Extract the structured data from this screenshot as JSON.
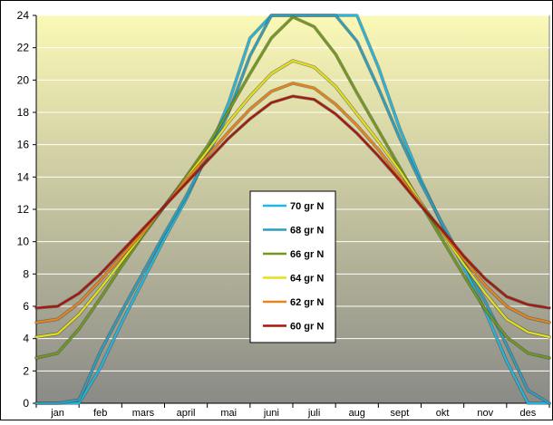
{
  "chart_data": {
    "type": "line",
    "x_unit": "month",
    "categories": [
      "jan",
      "feb",
      "mars",
      "april",
      "mai",
      "juni",
      "juli",
      "aug",
      "sept",
      "okt",
      "nov",
      "des"
    ],
    "ylim": [
      0,
      24
    ],
    "yticks": [
      0,
      2,
      4,
      6,
      8,
      10,
      12,
      14,
      16,
      18,
      20,
      22,
      24
    ],
    "grid": "horizontal",
    "legend_position": "center",
    "background_gradient": [
      "#fbf9b6",
      "#8a8a87"
    ],
    "x": [
      0,
      0.5,
      1,
      1.5,
      2,
      2.5,
      3,
      3.5,
      4,
      4.5,
      5,
      5.5,
      6,
      6.5,
      7,
      7.5,
      8,
      8.5,
      9,
      9.5,
      10,
      10.5,
      11,
      11.5,
      12
    ],
    "series": [
      {
        "name": "70 gr N",
        "color": "#1fb8e0",
        "values": [
          0,
          0,
          0,
          2.2,
          5.0,
          7.6,
          10.2,
          12.6,
          15.4,
          18.6,
          22.6,
          24,
          24,
          24,
          24,
          24,
          20.8,
          17.0,
          13.8,
          11.0,
          8.4,
          5.7,
          2.6,
          0,
          0
        ]
      },
      {
        "name": "68 gr N",
        "color": "#2a9fbf",
        "values": [
          0,
          0,
          0.2,
          3.2,
          5.7,
          8.1,
          10.5,
          12.8,
          15.3,
          18.0,
          21.5,
          24,
          24,
          24,
          24,
          22.4,
          19.5,
          16.4,
          13.6,
          11.1,
          8.7,
          6.3,
          3.6,
          0.8,
          0
        ]
      },
      {
        "name": "66 gr N",
        "color": "#6f9a1a",
        "values": [
          2.8,
          3.1,
          4.6,
          6.5,
          8.5,
          10.4,
          12.2,
          14.0,
          15.9,
          18.1,
          20.4,
          22.6,
          23.9,
          23.3,
          21.6,
          19.2,
          16.9,
          14.6,
          12.3,
          10.1,
          7.9,
          5.8,
          4.1,
          3.1,
          2.8
        ]
      },
      {
        "name": "64 gr N",
        "color": "#e5e01a",
        "values": [
          4.1,
          4.3,
          5.5,
          7.1,
          8.8,
          10.5,
          12.2,
          13.9,
          15.6,
          17.4,
          19.0,
          20.4,
          21.2,
          20.8,
          19.6,
          17.9,
          16.2,
          14.4,
          12.4,
          10.5,
          8.6,
          6.8,
          5.2,
          4.4,
          4.1
        ]
      },
      {
        "name": "62 gr N",
        "color": "#e8841c",
        "values": [
          5.0,
          5.2,
          6.2,
          7.6,
          9.1,
          10.6,
          12.2,
          13.8,
          15.3,
          16.8,
          18.2,
          19.3,
          19.8,
          19.5,
          18.5,
          17.2,
          15.7,
          14.0,
          12.3,
          10.6,
          8.9,
          7.3,
          6.0,
          5.3,
          5.0
        ]
      },
      {
        "name": "60 gr N",
        "color": "#a8160e",
        "values": [
          5.9,
          6.0,
          6.8,
          8.0,
          9.4,
          10.8,
          12.2,
          13.6,
          15.0,
          16.4,
          17.6,
          18.6,
          19.0,
          18.8,
          17.9,
          16.7,
          15.3,
          13.8,
          12.2,
          10.7,
          9.1,
          7.7,
          6.6,
          6.1,
          5.9
        ]
      }
    ]
  }
}
